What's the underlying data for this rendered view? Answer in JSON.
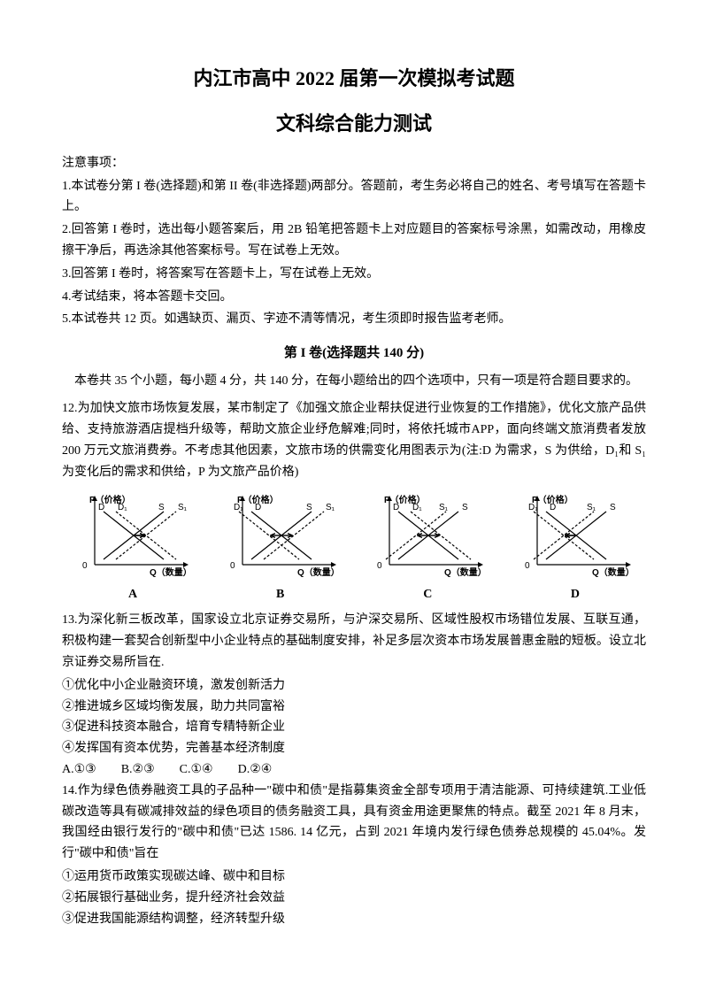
{
  "title_line1": "内江市高中 2022 届第一次模拟考试题",
  "title_line2": "文科综合能力测试",
  "notice_label": "注意事项：",
  "notices": [
    "1.本试卷分第 I 卷(选择题)和第 II 卷(非选择题)两部分。答题前，考生务必将自己的姓名、考号填写在答题卡上。",
    "2.回答第 I 卷时，选出每小题答案后，用 2B 铅笔把答题卡上对应题目的答案标号涂黑，如需改动，用橡皮擦干净后，再选涂其他答案标号。写在试卷上无效。",
    "3.回答第 I 卷时，将答案写在答题卡上，写在试卷上无效。",
    "4.考试结束，将本答题卡交回。",
    "5.本试卷共 12 页。如遇缺页、漏页、字迹不清等情况，考生须即时报告监考老师。"
  ],
  "section1_title": "第 I 卷(选择题共 140 分)",
  "section1_intro": "　本卷共 35 个小题，每小题 4 分，共 140 分，在每小题给出的四个选项中，只有一项是符合题目要求的。",
  "q12": "12.为加快文旅市场恢复发展，某市制定了《加强文旅企业帮扶促进行业恢复的工作措施》，优化文旅产品供给、支持旅游酒店提档升级等，帮助文旅企业纾危解难;同时，将依托城市APP，面向终端文旅消费者发放 200 万元文旅消费券。不考虑其他因素，文旅市场的供需变化用图表示为(注:D 为需求，S 为供给，D₁和 S₁为变化后的需求和供给，P 为文旅产品价格)",
  "charts": {
    "p_label": "P（价格）",
    "q_label": "Q（数量）",
    "d_label": "D",
    "d1_label": "D₁",
    "s_label": "S",
    "s1_label": "S₁",
    "options": [
      "A",
      "B",
      "C",
      "D"
    ],
    "configs": [
      {
        "d1_dir": "right",
        "s1_dir": "right"
      },
      {
        "d1_dir": "left",
        "s1_dir": "right"
      },
      {
        "d1_dir": "right",
        "s1_dir": "left"
      },
      {
        "d1_dir": "left",
        "s1_dir": "left"
      }
    ],
    "line_color": "#000000",
    "dash_pattern": "3,2",
    "axis_width": 1.2,
    "curve_width": 1.2
  },
  "q13": "13.为深化新三板改革，国家设立北京证券交易所，与沪深交易所、区域性股权市场错位发展、互联互通，积极构建一套契合创新型中小企业特点的基础制度安排，补足多层次资本市场发展普惠金融的短板。设立北京证券交易所旨在.",
  "q13_opts": [
    "①优化中小企业融资环境，激发创新活力",
    "②推进城乡区域均衡发展，助力共同富裕",
    "③促进科技资本融合，培育专精特新企业",
    "④发挥国有资本优势，完善基本经济制度"
  ],
  "q13_choices": "A.①③　　B.②③　　C.①④　　D.②④",
  "q14": "14.作为绿色债券融资工具的子品种一\"碳中和债\"是指募集资金全部专项用于清洁能源、可持续建筑.工业低碳改造等具有碳减排效益的绿色项目的债务融资工具，具有资金用途更聚焦的特点。截至 2021 年 8 月末，我国经由银行发行的\"碳中和债\"已达 1586. 14 亿元，占到 2021 年境内发行绿色债券总规模的 45.04%。发行\"碳中和债\"旨在",
  "q14_opts": [
    "①运用货币政策实现碳达峰、碳中和目标",
    "②拓展银行基础业务，提升经济社会效益",
    "③促进我国能源结构调整，经济转型升级"
  ]
}
